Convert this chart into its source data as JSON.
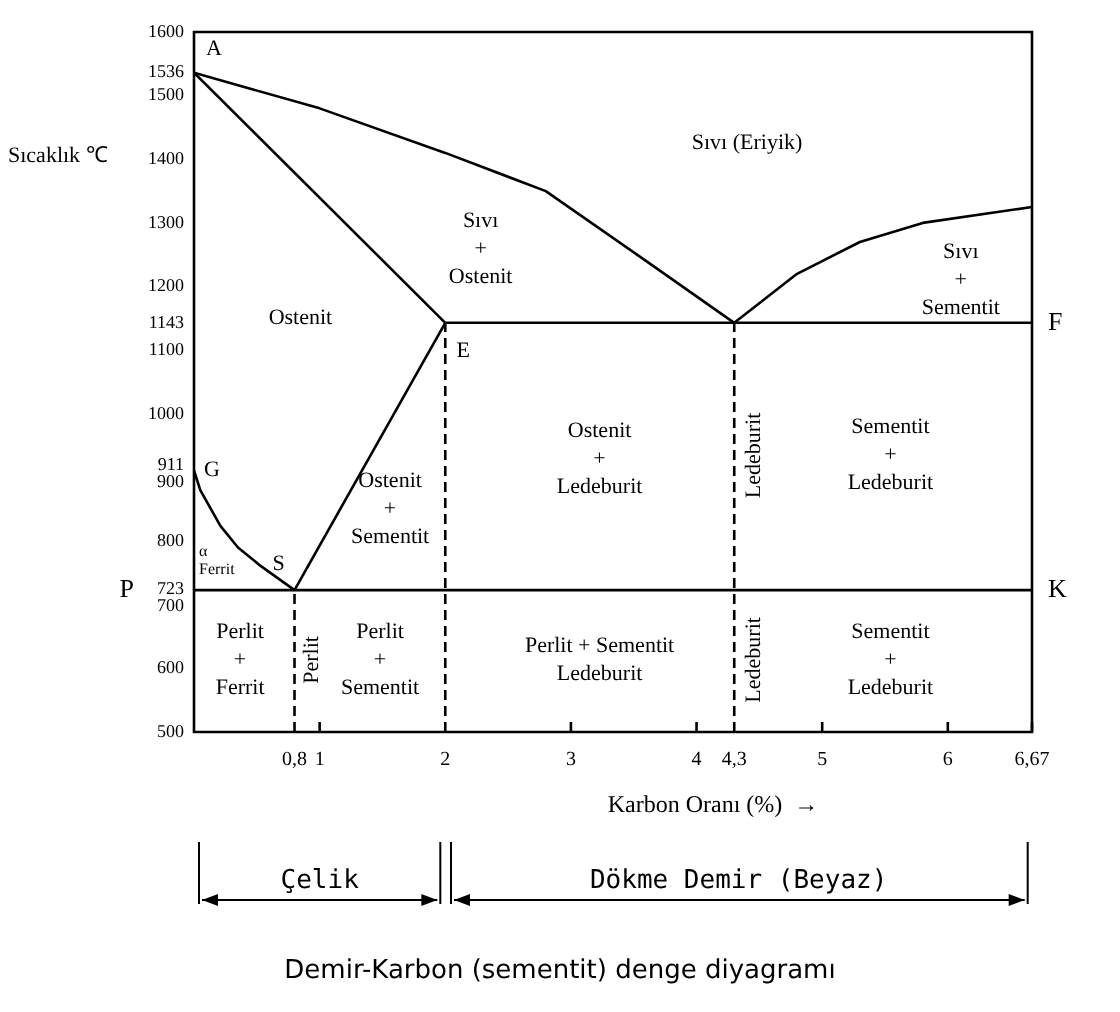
{
  "chart_data": {
    "type": "line",
    "title": "Demir-Karbon (sementit) denge diyagramı",
    "xlabel": "Karbon Oranı (%)  →",
    "ylabel": "Sıcaklık ℃",
    "xlim": [
      0,
      6.67
    ],
    "ylim": [
      500,
      1600
    ],
    "xticks": [
      {
        "value": 0.8,
        "label": "0,8"
      },
      1,
      2,
      3,
      4,
      {
        "value": 4.3,
        "label": "4,3"
      },
      5,
      6,
      {
        "value": 6.67,
        "label": "6,67"
      }
    ],
    "yticks": [
      500,
      600,
      700,
      723,
      800,
      900,
      911,
      1000,
      1100,
      1143,
      1200,
      1300,
      1400,
      1500,
      1536,
      1600
    ],
    "grid": false,
    "legend": false,
    "marker": "none",
    "series": [
      {
        "color": "#000000",
        "line_style": "solid",
        "x": [
          0,
          1,
          2,
          2.8,
          3.6,
          4.3
        ],
        "values": [
          1536,
          1480,
          1410,
          1350,
          1240,
          1143
        ]
      },
      {
        "color": "#000000",
        "line_style": "solid",
        "x": [
          0,
          2
        ],
        "values": [
          1536,
          1143
        ]
      },
      {
        "color": "#000000",
        "line_style": "solid",
        "x": [
          4.3,
          4.8,
          5.3,
          5.8,
          6.67
        ],
        "values": [
          1143,
          1220,
          1270,
          1300,
          1325
        ]
      },
      {
        "color": "#000000",
        "line_style": "solid",
        "x": [
          2,
          6.67
        ],
        "values": [
          1143,
          1143
        ]
      },
      {
        "color": "#000000",
        "line_style": "solid",
        "x": [
          2,
          0.8
        ],
        "values": [
          1143,
          723
        ]
      },
      {
        "color": "#000000",
        "line_style": "solid",
        "x": [
          0,
          0.05,
          0.21,
          0.35,
          0.53,
          0.8
        ],
        "values": [
          911,
          880,
          824,
          790,
          761,
          723
        ]
      },
      {
        "color": "#000000",
        "line_style": "solid",
        "x": [
          0,
          6.67
        ],
        "values": [
          723,
          723
        ]
      },
      {
        "color": "#000000",
        "line_style": "dashed",
        "x": [
          0.8,
          0.8
        ],
        "values": [
          500,
          723
        ]
      },
      {
        "color": "#000000",
        "line_style": "dashed",
        "x": [
          2,
          2
        ],
        "values": [
          500,
          1143
        ]
      },
      {
        "color": "#000000",
        "line_style": "dashed",
        "x": [
          4.3,
          4.3
        ],
        "values": [
          500,
          1143
        ]
      }
    ],
    "annotations": [
      {
        "text": "A",
        "x": 0,
        "y": 1536
      },
      {
        "text": "E",
        "x": 2,
        "y": 1143
      },
      {
        "text": "G",
        "x": 0,
        "y": 911
      },
      {
        "text": "S",
        "x": 0.8,
        "y": 723
      },
      {
        "text": "P",
        "x": 0,
        "y": 723
      },
      {
        "text": "K",
        "x": 6.67,
        "y": 723
      },
      {
        "text": "F",
        "x": 6.67,
        "y": 1143
      },
      "Sıvı (Eriyik)",
      "Sıvı\n+\nOstenit",
      "Ostenit",
      "Sıvı\n+\nSementit",
      "Ostenit\n+\nLedeburit",
      "Ledeburit",
      "Sementit\n+\nLedeburit",
      "Ostenit\n+\nSementit",
      "α\nFerrit",
      "Perlit\n+\nFerrit",
      "Perlit",
      "Perlit\n+\nSementit",
      "Perlit + Sementit\nLedeburit",
      "Ledeburit",
      "Sementit\n+\nLedeburit",
      "Çelik",
      "Dökme Demir (Beyaz)"
    ]
  }
}
